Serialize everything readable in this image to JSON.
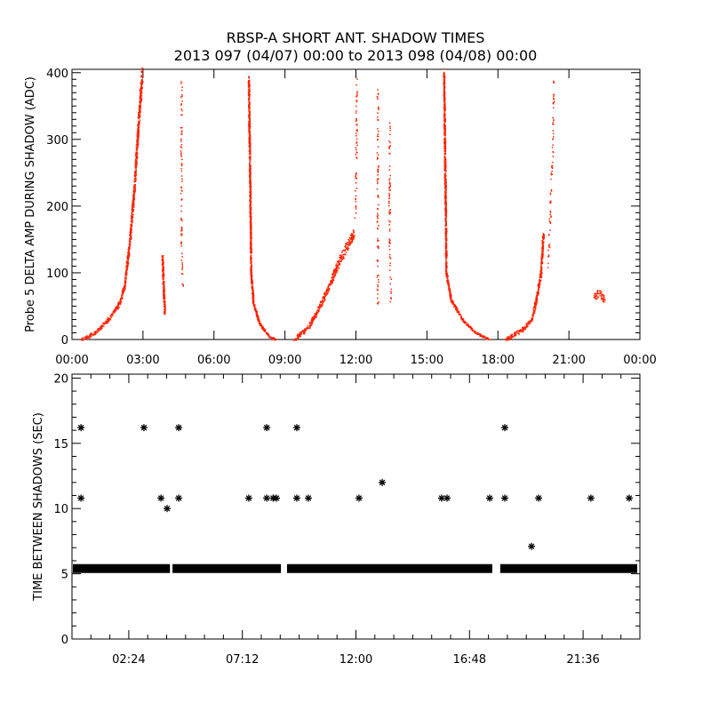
{
  "title": "RBSP-A SHORT ANT. SHADOW TIMES",
  "subtitle": "2013 097 (04/07) 00:00 to 2013 098 (04/08) 00:00",
  "colors": {
    "points": "#ff2200",
    "stars": "#000000",
    "axes": "#000000"
  },
  "chart_data": [
    {
      "type": "scatter",
      "ylabel": "Probe 5 DELTA AMP DURING SHADOW (ADC)",
      "xlabel": "",
      "xlim_hours": [
        0,
        24
      ],
      "ylim": [
        0,
        405
      ],
      "x_tick_labels": [
        "00:00",
        "03:00",
        "06:00",
        "09:00",
        "12:00",
        "15:00",
        "18:00",
        "21:00",
        "00:00"
      ],
      "x_tick_hours": [
        0,
        3,
        6,
        9,
        12,
        15,
        18,
        21,
        24
      ],
      "y_ticks": [
        0,
        100,
        200,
        300,
        400
      ],
      "y_tick_labels": [
        "0",
        "100",
        "200",
        "300",
        "400"
      ],
      "grid": false,
      "segments": [
        {
          "points": [
            [
              0.4,
              0
            ],
            [
              1.0,
              12
            ],
            [
              1.5,
              30
            ],
            [
              2.0,
              55
            ],
            [
              2.2,
              80
            ],
            [
              2.4,
              140
            ],
            [
              2.6,
              220
            ],
            [
              2.8,
              330
            ],
            [
              2.95,
              400
            ]
          ],
          "spread": 10
        },
        {
          "points": [
            [
              3.8,
              125
            ],
            [
              3.85,
              80
            ],
            [
              3.9,
              40
            ]
          ],
          "spread": 6
        },
        {
          "points": [
            [
              4.6,
              390
            ],
            [
              4.6,
              200
            ],
            [
              4.62,
              100
            ],
            [
              4.65,
              80
            ]
          ],
          "spread": 4,
          "sparse": true
        },
        {
          "points": [
            [
              7.45,
              390
            ],
            [
              7.5,
              250
            ],
            [
              7.55,
              100
            ],
            [
              7.65,
              55
            ],
            [
              7.9,
              25
            ],
            [
              8.3,
              6
            ],
            [
              8.6,
              0
            ]
          ],
          "spread": 6
        },
        {
          "points": [
            [
              9.35,
              0
            ],
            [
              10.0,
              20
            ],
            [
              10.6,
              60
            ],
            [
              11.3,
              120
            ],
            [
              11.9,
              160
            ]
          ],
          "spread": 12
        },
        {
          "points": [
            [
              11.95,
              180
            ],
            [
              12.0,
              300
            ],
            [
              12.0,
              395
            ]
          ],
          "spread": 3,
          "sparse": true
        },
        {
          "points": [
            [
              12.9,
              380
            ],
            [
              12.9,
              150
            ],
            [
              12.9,
              80
            ],
            [
              12.92,
              50
            ]
          ],
          "spread": 5,
          "sparse": true
        },
        {
          "points": [
            [
              13.4,
              330
            ],
            [
              13.4,
              150
            ],
            [
              13.45,
              80
            ],
            [
              13.45,
              55
            ]
          ],
          "spread": 5,
          "sparse": true
        },
        {
          "points": [
            [
              15.7,
              400
            ],
            [
              15.75,
              250
            ],
            [
              15.8,
              100
            ],
            [
              16.0,
              60
            ],
            [
              16.5,
              30
            ],
            [
              17.0,
              12
            ],
            [
              17.65,
              0
            ]
          ],
          "spread": 6
        },
        {
          "points": [
            [
              18.3,
              0
            ],
            [
              19.0,
              15
            ],
            [
              19.4,
              30
            ],
            [
              19.6,
              60
            ],
            [
              19.8,
              100
            ],
            [
              19.9,
              160
            ]
          ],
          "spread": 10
        },
        {
          "points": [
            [
              20.1,
              110
            ],
            [
              20.2,
              200
            ],
            [
              20.3,
              300
            ],
            [
              20.35,
              390
            ]
          ],
          "spread": 8,
          "sparse": true
        },
        {
          "points": [
            [
              22.0,
              65
            ],
            [
              22.25,
              70
            ],
            [
              22.5,
              60
            ]
          ],
          "spread": 15
        }
      ]
    },
    {
      "type": "scatter",
      "ylabel": "TIME BETWEEN SHADOWS (SEC)",
      "xlabel": "",
      "xlim_hours": [
        0,
        24
      ],
      "ylim": [
        0,
        20
      ],
      "x_tick_labels": [
        "02:24",
        "07:12",
        "12:00",
        "16:48",
        "21:36"
      ],
      "x_tick_hours": [
        2.4,
        7.2,
        12.0,
        16.8,
        21.6
      ],
      "y_ticks": [
        0,
        5,
        10,
        15,
        20
      ],
      "y_tick_labels": [
        "0",
        "5",
        "10",
        "15",
        "20"
      ],
      "grid": false,
      "baseline_value": 5.4,
      "baseline_ranges_hours": [
        [
          0.15,
          4.14
        ],
        [
          4.36,
          8.83
        ],
        [
          9.2,
          17.76
        ],
        [
          18.21,
          24
        ]
      ],
      "points": [
        [
          0.38,
          16.2
        ],
        [
          0.38,
          10.8
        ],
        [
          3.04,
          16.2
        ],
        [
          3.76,
          10.8
        ],
        [
          4.02,
          10.0
        ],
        [
          4.51,
          16.2
        ],
        [
          4.51,
          10.8
        ],
        [
          7.47,
          10.8
        ],
        [
          8.23,
          16.2
        ],
        [
          8.23,
          10.8
        ],
        [
          8.5,
          10.8
        ],
        [
          8.64,
          10.8
        ],
        [
          9.5,
          16.2
        ],
        [
          9.5,
          10.8
        ],
        [
          9.99,
          10.8
        ],
        [
          12.13,
          10.8
        ],
        [
          13.11,
          12.0
        ],
        [
          15.62,
          10.8
        ],
        [
          15.85,
          10.8
        ],
        [
          17.65,
          10.8
        ],
        [
          18.29,
          16.2
        ],
        [
          18.29,
          10.8
        ],
        [
          19.42,
          7.1
        ],
        [
          19.72,
          10.8
        ],
        [
          21.93,
          10.8
        ],
        [
          23.55,
          10.8
        ]
      ]
    }
  ]
}
